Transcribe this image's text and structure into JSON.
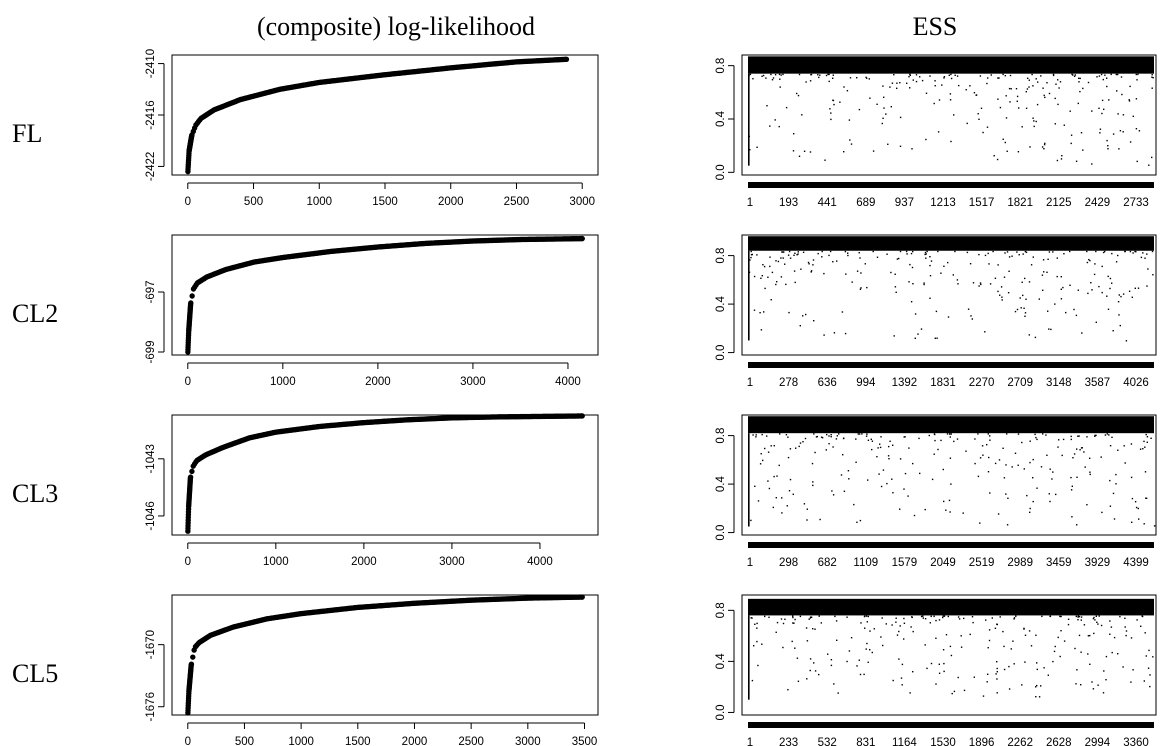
{
  "columns": {
    "left_title": "(composite) log-likelihood",
    "right_title": "ESS"
  },
  "rows": [
    {
      "label": "FL"
    },
    {
      "label": "CL2"
    },
    {
      "label": "CL3"
    },
    {
      "label": "CL5"
    }
  ],
  "chart_data": [
    {
      "panel": "FL log-likelihood",
      "type": "scatter",
      "title": "",
      "xlabel": "",
      "ylabel": "",
      "xlim": [
        0,
        3000
      ],
      "x_ticks": [
        0,
        500,
        1000,
        1500,
        2000,
        2500,
        3000
      ],
      "y_ticks": [
        -2422,
        -2416,
        -2410
      ],
      "ylim": [
        -2423,
        -2409
      ],
      "n_points": 2880,
      "curve": {
        "x": [
          1,
          10,
          30,
          60,
          100,
          200,
          400,
          700,
          1000,
          1500,
          2000,
          2500,
          2880
        ],
        "y": [
          -2422.6,
          -2420.2,
          -2418.4,
          -2417.2,
          -2416.4,
          -2415.4,
          -2414.2,
          -2413.0,
          -2412.2,
          -2411.3,
          -2410.5,
          -2409.8,
          -2409.5
        ]
      }
    },
    {
      "panel": "FL ESS",
      "type": "scatter",
      "title": "",
      "xlabel": "",
      "ylabel": "",
      "n_points": 2885,
      "x_ticks": [
        "1",
        "193",
        "441",
        "689",
        "937",
        "1213",
        "1517",
        "1821",
        "2125",
        "2429",
        "2733"
      ],
      "y_ticks": [
        "0.0",
        "0.4",
        "0.8"
      ],
      "ylim": [
        -0.02,
        0.88
      ],
      "band": [
        0.74,
        0.87
      ],
      "scatter_min": 0.05
    },
    {
      "panel": "CL2 log-likelihood",
      "type": "scatter",
      "title": "",
      "xlabel": "",
      "ylabel": "",
      "xlim": [
        0,
        4150
      ],
      "x_ticks": [
        0,
        1000,
        2000,
        3000,
        4000
      ],
      "y_ticks": [
        -699,
        -697
      ],
      "ylim": [
        -699.1,
        -695.1
      ],
      "n_points": 4150,
      "curve": {
        "x": [
          1,
          10,
          30,
          60,
          100,
          200,
          400,
          700,
          1000,
          1500,
          2000,
          2500,
          3000,
          3500,
          4150
        ],
        "y": [
          -699.0,
          -698.3,
          -697.4,
          -696.9,
          -696.7,
          -696.5,
          -696.25,
          -696.0,
          -695.85,
          -695.65,
          -695.5,
          -695.38,
          -695.3,
          -695.25,
          -695.22
        ]
      }
    },
    {
      "panel": "CL2 ESS",
      "type": "scatter",
      "title": "",
      "xlabel": "",
      "ylabel": "",
      "n_points": 4150,
      "x_ticks": [
        "1",
        "278",
        "636",
        "994",
        "1392",
        "1831",
        "2270",
        "2709",
        "3148",
        "3587",
        "4026"
      ],
      "y_ticks": [
        "0.0",
        "0.4",
        "0.8"
      ],
      "ylim": [
        -0.02,
        0.97
      ],
      "band": [
        0.84,
        0.96
      ],
      "scatter_min": 0.1
    },
    {
      "panel": "CL3 log-likelihood",
      "type": "scatter",
      "title": "",
      "xlabel": "",
      "ylabel": "",
      "xlim": [
        0,
        4480
      ],
      "x_ticks": [
        0,
        1000,
        2000,
        3000,
        4000
      ],
      "y_ticks": [
        -1046,
        -1043
      ],
      "ylim": [
        -1047.0,
        -1040.7
      ],
      "n_points": 4480,
      "curve": {
        "x": [
          1,
          10,
          30,
          60,
          100,
          200,
          400,
          700,
          1000,
          1500,
          2000,
          2500,
          3000,
          3500,
          4480
        ],
        "y": [
          -1046.8,
          -1045.5,
          -1044.0,
          -1043.4,
          -1043.1,
          -1042.8,
          -1042.4,
          -1041.9,
          -1041.6,
          -1041.3,
          -1041.1,
          -1040.95,
          -1040.85,
          -1040.8,
          -1040.75
        ]
      }
    },
    {
      "panel": "CL3 ESS",
      "type": "scatter",
      "title": "",
      "xlabel": "",
      "ylabel": "",
      "n_points": 4480,
      "x_ticks": [
        "1",
        "298",
        "682",
        "1109",
        "1579",
        "2049",
        "2519",
        "2989",
        "3459",
        "3929",
        "4399"
      ],
      "y_ticks": [
        "0.0",
        "0.4",
        "0.8"
      ],
      "ylim": [
        -0.02,
        0.97
      ],
      "band": [
        0.82,
        0.96
      ],
      "scatter_min": 0.05
    },
    {
      "panel": "CL5 log-likelihood",
      "type": "scatter",
      "title": "",
      "xlabel": "",
      "ylabel": "",
      "xlim": [
        0,
        3480
      ],
      "x_ticks": [
        0,
        500,
        1000,
        1500,
        2000,
        2500,
        3000,
        3500
      ],
      "y_ticks": [
        -1676,
        -1670
      ],
      "ylim": [
        -1676.8,
        -1665.2
      ],
      "n_points": 3480,
      "curve": {
        "x": [
          1,
          10,
          30,
          60,
          100,
          200,
          400,
          700,
          1000,
          1500,
          2000,
          2500,
          3000,
          3480
        ],
        "y": [
          -1676.6,
          -1674.5,
          -1672.0,
          -1670.3,
          -1669.8,
          -1669.1,
          -1668.3,
          -1667.5,
          -1667.0,
          -1666.4,
          -1666.0,
          -1665.7,
          -1665.5,
          -1665.4
        ]
      }
    },
    {
      "panel": "CL5 ESS",
      "type": "scatter",
      "title": "",
      "xlabel": "",
      "ylabel": "",
      "n_points": 3480,
      "x_ticks": [
        "1",
        "233",
        "532",
        "831",
        "1164",
        "1530",
        "1896",
        "2262",
        "2628",
        "2994",
        "3360"
      ],
      "y_ticks": [
        "0.0",
        "0.4",
        "0.8"
      ],
      "ylim": [
        -0.02,
        0.92
      ],
      "band": [
        0.76,
        0.89
      ],
      "scatter_min": 0.1
    }
  ]
}
